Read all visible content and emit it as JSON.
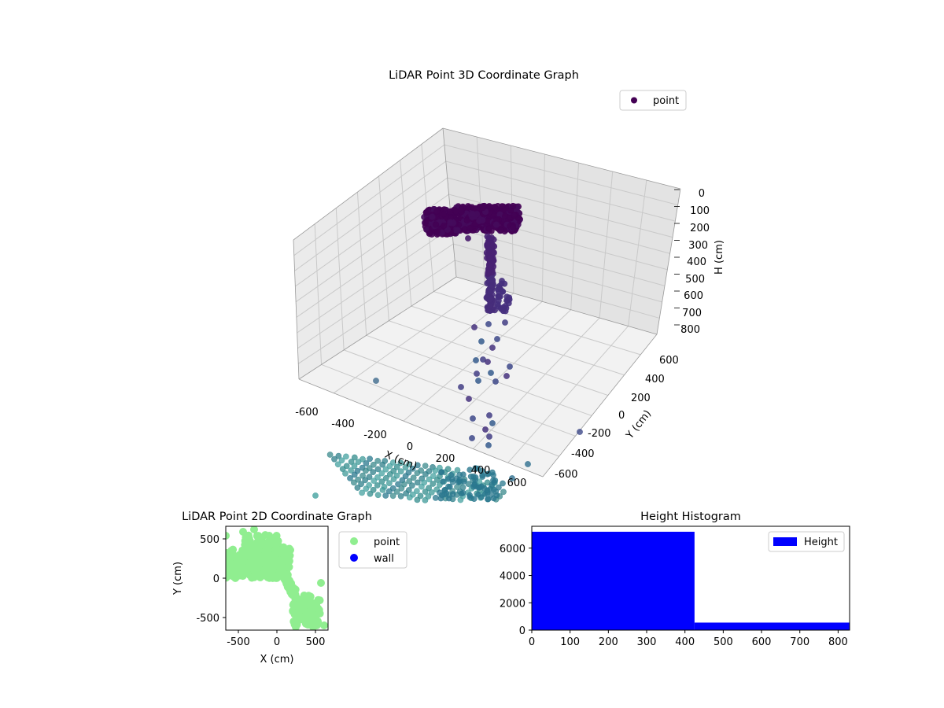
{
  "chart_data": [
    {
      "type": "scatter",
      "projection": "3d",
      "title": "LiDAR Point 3D Coordinate Graph",
      "xlabel": "X (cm)",
      "ylabel": "Y (cm)",
      "zlabel": "H (cm)",
      "xticks": [
        "-600",
        "-400",
        "-200",
        "0",
        "200",
        "400",
        "600"
      ],
      "yticks": [
        "-600",
        "-400",
        "-200",
        "0",
        "200",
        "400",
        "600"
      ],
      "zticks": [
        "0",
        "100",
        "200",
        "300",
        "400",
        "500",
        "600",
        "700",
        "800"
      ],
      "xlim": [
        -650,
        650
      ],
      "ylim": [
        -650,
        650
      ],
      "zlim": [
        0,
        830
      ],
      "z_inverted": true,
      "colormap": "viridis",
      "legend": [
        {
          "label": "point",
          "color": "#440154"
        }
      ],
      "legend_position": "top-right",
      "grid": true
    },
    {
      "type": "scatter",
      "title": "LiDAR Point 2D Coordinate Graph",
      "xlabel": "X (cm)",
      "ylabel": "Y (cm)",
      "xticks": [
        "-500",
        "0",
        "500"
      ],
      "yticks": [
        "500",
        "0",
        "-500"
      ],
      "xlim": [
        -660,
        660
      ],
      "ylim": [
        -660,
        660
      ],
      "series": [
        {
          "name": "point",
          "color": "#90ee90"
        },
        {
          "name": "wall",
          "color": "#0000ff"
        }
      ],
      "legend_position": "outside-right"
    },
    {
      "type": "bar",
      "title": "Height Histogram",
      "xticks": [
        "0",
        "100",
        "200",
        "300",
        "400",
        "500",
        "600",
        "700",
        "800"
      ],
      "yticks": [
        "0",
        "2000",
        "4000",
        "6000"
      ],
      "xlim": [
        0,
        830
      ],
      "ylim": [
        0,
        7600
      ],
      "bins": [
        {
          "from": 0,
          "to": 425,
          "count": 7200
        },
        {
          "from": 425,
          "to": 830,
          "count": 550
        }
      ],
      "series": [
        {
          "name": "Height",
          "color": "#0000ff"
        }
      ],
      "legend_position": "top-right"
    }
  ]
}
